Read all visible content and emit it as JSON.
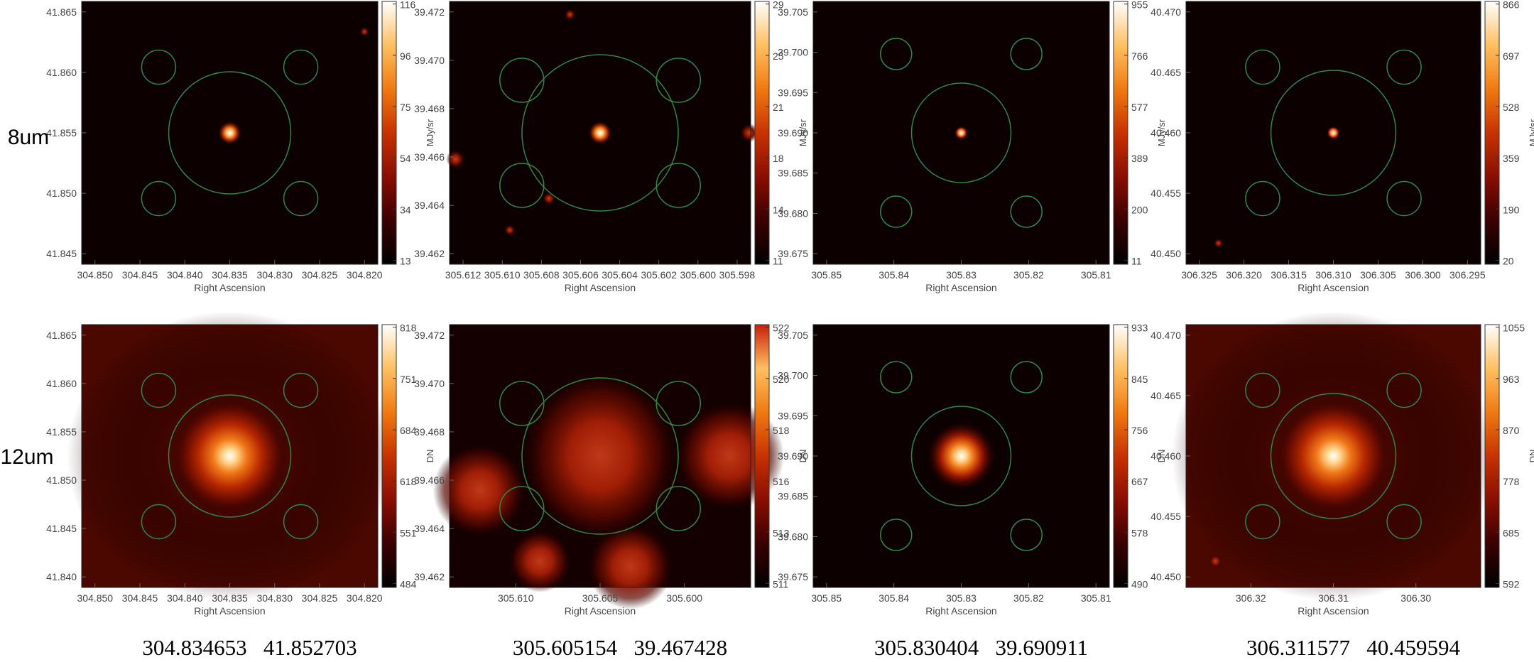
{
  "row_labels": [
    "8um",
    "12um"
  ],
  "x_axis_label": "Right Ascension",
  "colors": {
    "aperture": "#2f8a3a",
    "colormap": [
      "#000000",
      "#3a0000",
      "#8a0e00",
      "#c83200",
      "#f07a10",
      "#ffc060",
      "#ffffff"
    ],
    "background": "#ffffff"
  },
  "panels": [
    {
      "coords": "304.834653   41.852703",
      "top": {
        "y_ticks": [
          "41.865",
          "41.860",
          "41.855",
          "41.850",
          "41.845"
        ],
        "x_ticks": [
          "304.850",
          "304.845",
          "304.840",
          "304.835",
          "304.830",
          "304.825",
          "304.820"
        ],
        "cbar_ticks": [
          "116",
          "96",
          "75",
          "54",
          "34",
          "13"
        ],
        "cbar_unit": "MJy/sr",
        "colormap_top": "#ffffff",
        "style": "sharp",
        "source": [
          0.5,
          0.5
        ],
        "extras": [
          [
            0.955,
            0.115,
            0.3
          ]
        ]
      },
      "bottom": {
        "y_ticks": [
          "41.865",
          "41.860",
          "41.855",
          "41.850",
          "41.845",
          "41.840"
        ],
        "x_ticks": [
          "304.850",
          "304.845",
          "304.840",
          "304.835",
          "304.830",
          "304.825",
          "304.820"
        ],
        "cbar_ticks": [
          "818",
          "751",
          "684",
          "618",
          "551",
          "484"
        ],
        "cbar_unit": "DN",
        "colormap_top": "#ffffff",
        "style": "diffuse",
        "source": [
          0.5,
          0.5
        ],
        "extras": []
      }
    },
    {
      "coords": "305.605154   39.467428",
      "top": {
        "y_ticks": [
          "39.472",
          "39.470",
          "39.468",
          "39.466",
          "39.464",
          "39.462"
        ],
        "x_ticks": [
          "305.612",
          "305.610",
          "305.608",
          "305.606",
          "305.604",
          "305.602",
          "305.600",
          "305.598"
        ],
        "cbar_ticks": [
          "29",
          "25",
          "21",
          "18",
          "14",
          "11"
        ],
        "cbar_unit": "MJy/sr",
        "colormap_top": "#ffffff",
        "style": "sharp",
        "source": [
          0.5,
          0.5
        ],
        "extras": [
          [
            0.02,
            0.6,
            0.6
          ],
          [
            0.995,
            0.5,
            0.6
          ],
          [
            0.33,
            0.75,
            0.4
          ],
          [
            0.2,
            0.87,
            0.35
          ],
          [
            0.4,
            0.05,
            0.35
          ]
        ]
      },
      "bottom": {
        "y_ticks": [
          "39.472",
          "39.470",
          "39.468",
          "39.466",
          "39.464",
          "39.462"
        ],
        "x_ticks": [
          "305.610",
          "305.605",
          "305.600"
        ],
        "cbar_ticks": [
          "522",
          "520",
          "518",
          "516",
          "513",
          "511"
        ],
        "cbar_unit": "DN",
        "colormap_top": "#c81e0a",
        "style": "blobs",
        "source": [
          0.5,
          0.5
        ],
        "extras": [
          [
            0.93,
            0.5,
            0.7
          ],
          [
            0.1,
            0.63,
            0.6
          ],
          [
            0.6,
            0.92,
            0.55
          ],
          [
            0.3,
            0.9,
            0.4
          ]
        ]
      }
    },
    {
      "coords": "305.830404   39.690911",
      "top": {
        "y_ticks": [
          "39.705",
          "39.700",
          "39.695",
          "39.690",
          "39.685",
          "39.680",
          "39.675"
        ],
        "x_ticks": [
          "305.85",
          "305.84",
          "305.83",
          "305.82",
          "305.81"
        ],
        "cbar_ticks": [
          "955",
          "766",
          "577",
          "389",
          "200",
          "11"
        ],
        "cbar_unit": "MJy/sr",
        "colormap_top": "#ffffff",
        "style": "point",
        "source": [
          0.5,
          0.5
        ],
        "extras": []
      },
      "bottom": {
        "y_ticks": [
          "39.705",
          "39.700",
          "39.695",
          "39.690",
          "39.685",
          "39.680",
          "39.675"
        ],
        "x_ticks": [
          "305.85",
          "305.84",
          "305.83",
          "305.82",
          "305.81"
        ],
        "cbar_ticks": [
          "933",
          "845",
          "756",
          "667",
          "578",
          "490"
        ],
        "cbar_unit": "DN",
        "colormap_top": "#ffffff",
        "style": "compact",
        "source": [
          0.5,
          0.5
        ],
        "extras": []
      }
    },
    {
      "coords": "306.311577   40.459594",
      "top": {
        "y_ticks": [
          "40.470",
          "40.465",
          "40.460",
          "40.455",
          "40.450"
        ],
        "x_ticks": [
          "306.325",
          "306.320",
          "306.315",
          "306.310",
          "306.305",
          "306.300",
          "306.295"
        ],
        "cbar_ticks": [
          "866",
          "697",
          "528",
          "359",
          "190",
          "20"
        ],
        "cbar_unit": "MJy/sr",
        "colormap_top": "#ffffff",
        "style": "point",
        "source": [
          0.5,
          0.5
        ],
        "extras": [
          [
            0.11,
            0.92,
            0.3
          ]
        ]
      },
      "bottom": {
        "y_ticks": [
          "40.470",
          "40.465",
          "40.460",
          "40.455",
          "40.450"
        ],
        "x_ticks": [
          "306.32",
          "306.31",
          "306.30"
        ],
        "cbar_ticks": [
          "1055",
          "963",
          "870",
          "778",
          "685",
          "592"
        ],
        "cbar_unit": "DN",
        "colormap_top": "#ffffff",
        "style": "diffuse",
        "source": [
          0.5,
          0.5
        ],
        "extras": [
          [
            0.1,
            0.9,
            0.45
          ]
        ]
      }
    }
  ]
}
